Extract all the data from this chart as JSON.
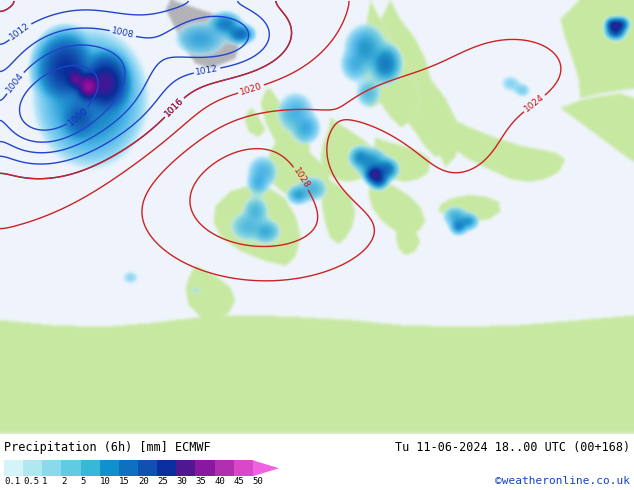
{
  "title_left": "Precipitation (6h) [mm] ECMWF",
  "title_right": "Tu 11-06-2024 18..00 UTC (00+168)",
  "attribution": "©weatheronline.co.uk",
  "colorbar_values": [
    0.1,
    0.5,
    1,
    2,
    5,
    10,
    15,
    20,
    25,
    30,
    35,
    40,
    45,
    50
  ],
  "colorbar_colors": [
    "#d4f4fa",
    "#b0e8f0",
    "#8adaec",
    "#60cce4",
    "#38b8d8",
    "#1090cc",
    "#1070c0",
    "#1050b0",
    "#0a30a0",
    "#501890",
    "#8818a0",
    "#b030b0",
    "#d848c8",
    "#f060e0"
  ],
  "bg_color": "#ffffff",
  "land_color": "#c8e8a0",
  "sea_color": "#e8f4f8",
  "prec_light": "#b8e8f8",
  "prec_medium": "#70c8f0",
  "prec_dark": "#2080d0",
  "prec_intense": "#1030a0",
  "fig_width": 6.34,
  "fig_height": 4.9,
  "dpi": 100
}
